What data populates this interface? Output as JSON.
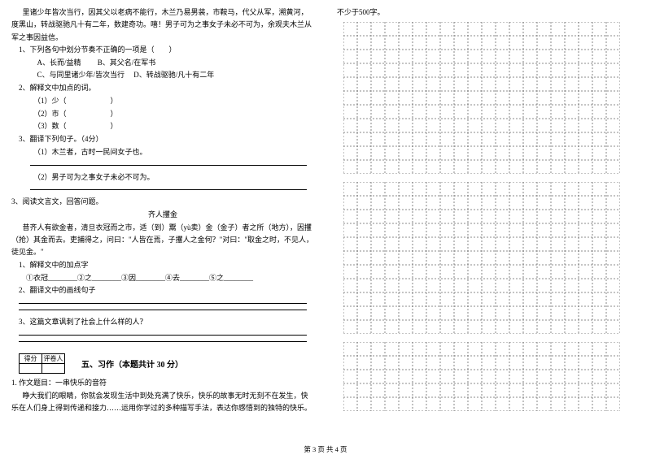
{
  "left": {
    "para1": "里诸少年皆次当行，因其父以老病不能行，木兰乃易男装，市鞍马，代父从军，溯黄河，度黑山，转战驱驰凡十有二年，数建奇功。嘻！男子可为之事女子未必不可为，余观夫木兰从军之事因益信。",
    "q1": "1、下列各句中划分节奏不正确的一项是（　　）",
    "q1a": "A、长而/益精",
    "q1b": "B、其父名/在军书",
    "q1c": "C、与同里诸少年/皆次当行",
    "q1d": "D、转战驱驰/凡十有二年",
    "q2": "2、解释文中加点的词。",
    "q2a": "（1）少（　　　　　　）",
    "q2b": "（2）市（　　　　　　）",
    "q2c": "（3）数（　　　　　　）",
    "q3": "3、翻译下列句子。（4分）",
    "q3a": "（1）木兰者，古时一民间女子也。",
    "q3b": "（2）男子可为之事女子未必不可为。",
    "q4title": "3、阅读文言文，回答问题。",
    "story_title": "齐人攫金",
    "story": "昔齐人有欲金者，清旦衣冠而之市，适（到）鬻（yù卖）金（金子）者之所（地方），因攫（抢）其金而去。吏捕得之，问曰：\"人皆在焉，子攫人之金何？\"对曰：\"取金之时，不见人，徒见金。\"",
    "q5": "1、解释文中的加点字",
    "q5fill": "①衣冠________②之________③因________④去________⑤之________",
    "q6": "2、翻译文中的画线句子",
    "q7": "3、这篇文章讽刺了社会上什么样的人？",
    "score_h1": "得分",
    "score_h2": "评卷人",
    "sec5": "五、习作（本题共计 30 分）",
    "essay_title": "1. 作文题目：一串快乐的音符",
    "essay_body": "睁大我们的眼睛，你就会发现生活中到处充满了快乐，快乐的故事无时无刻不在发生，快乐在人们身上得到传递和接力……运用你学过的多种描写手法，表达你感悟到的独特的快乐。"
  },
  "right": {
    "req": "不少于500字。"
  },
  "grid": {
    "cols": 20,
    "rows1": 11,
    "rows2": 11,
    "rows3": 5,
    "cell": 17,
    "dash": "2,2",
    "color": "#666666"
  },
  "footer": "第 3 页 共 4 页"
}
